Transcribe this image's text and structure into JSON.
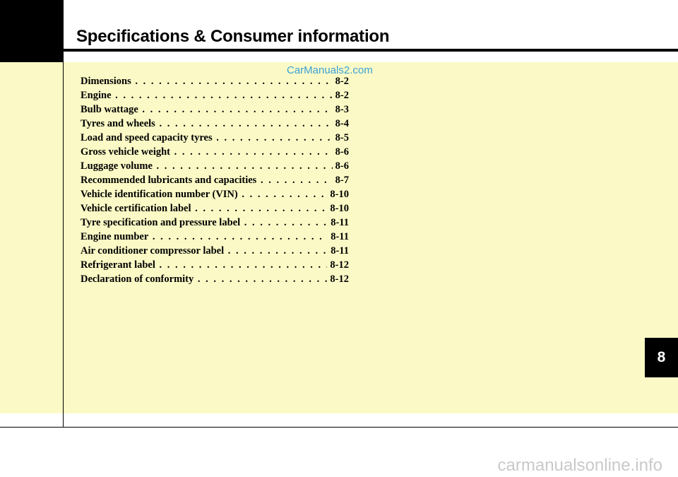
{
  "header": {
    "title": "Specifications & Consumer information"
  },
  "watermark_top": "CarManuals2.com",
  "toc": [
    {
      "title": "Dimensions",
      "page": "8-2"
    },
    {
      "title": "Engine",
      "page": "8-2"
    },
    {
      "title": "Bulb wattage",
      "page": "8-3"
    },
    {
      "title": "Tyres and wheels",
      "page": "8-4"
    },
    {
      "title": "Load and speed capacity tyres",
      "page": "8-5"
    },
    {
      "title": "Gross vehicle weight",
      "page": "8-6"
    },
    {
      "title": "Luggage volume",
      "page": "8-6"
    },
    {
      "title": "Recommended lubricants and capacities",
      "page": "8-7"
    },
    {
      "title": "Vehicle identification number (VIN)",
      "page": "8-10"
    },
    {
      "title": "Vehicle certification label",
      "page": "8-10"
    },
    {
      "title": "Tyre specification and pressure label",
      "page": "8-11"
    },
    {
      "title": "Engine number",
      "page": "8-11"
    },
    {
      "title": "Air conditioner compressor label",
      "page": "8-11"
    },
    {
      "title": "Refrigerant label",
      "page": "8-12"
    },
    {
      "title": "Declaration of conformity",
      "page": "8-12"
    }
  ],
  "chapter_tab": "8",
  "watermark_bottom": "carmanualsonline.info",
  "colors": {
    "panel": "#fbfac6",
    "tab": "#000000",
    "watermark_top": "#3aa0d8",
    "watermark_bottom": "#c9c9c9"
  }
}
